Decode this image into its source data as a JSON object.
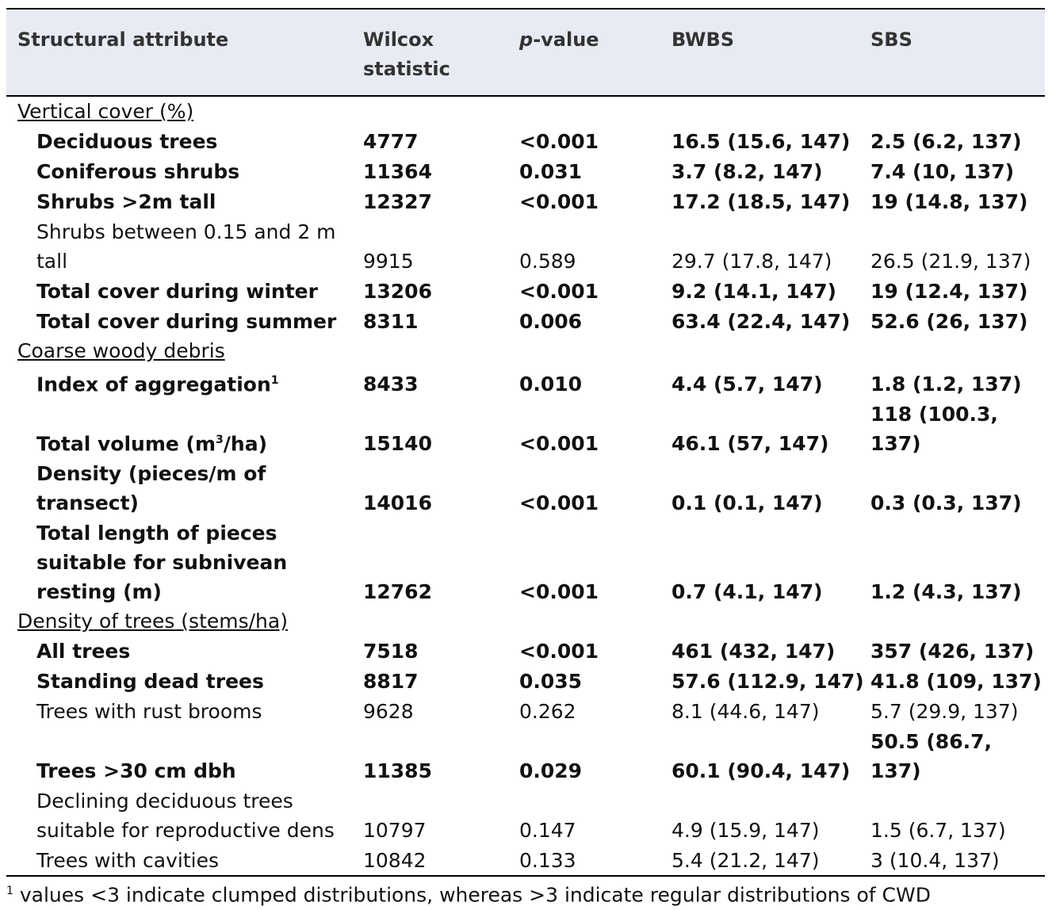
{
  "header": {
    "col1": "Structural attribute",
    "col2_line1": "Wilcox",
    "col2_line2": "statistic",
    "col3_italic": "p",
    "col3_rest": "-value",
    "col4": "BWBS",
    "col5": "SBS"
  },
  "groups": [
    {
      "title": "Vertical cover (%)",
      "rows": [
        {
          "bold": true,
          "attr": "Deciduous trees",
          "w": "4777",
          "p": "<0.001",
          "bwbs": "16.5 (15.6, 147)",
          "sbs": "2.5 (6.2, 137)"
        },
        {
          "bold": true,
          "attr": "Coniferous shrubs",
          "w": "11364",
          "p": "0.031",
          "bwbs": "3.7 (8.2, 147)",
          "sbs": "7.4 (10, 137)"
        },
        {
          "bold": true,
          "attr": "Shrubs >2m tall",
          "w": "12327",
          "p": "<0.001",
          "bwbs": "17.2 (18.5, 147)",
          "sbs": "19 (14.8, 137)"
        },
        {
          "bold": false,
          "attr": "Shrubs between 0.15 and 2 m tall",
          "w": "9915",
          "p": "0.589",
          "bwbs": "29.7 (17.8, 147)",
          "sbs": "26.5 (21.9, 137)"
        },
        {
          "bold": true,
          "attr": "Total cover during winter",
          "w": "13206",
          "p": "<0.001",
          "bwbs": "9.2 (14.1, 147)",
          "sbs": "19 (12.4, 137)"
        },
        {
          "bold": true,
          "attr": "Total cover during summer",
          "w": "8311",
          "p": "0.006",
          "bwbs": "63.4 (22.4, 147)",
          "sbs": "52.6 (26, 137)"
        }
      ]
    },
    {
      "title": "Coarse woody debris",
      "rows": [
        {
          "bold": true,
          "attr": "Index of aggregation",
          "sup": "1",
          "w": "8433",
          "p": "0.010",
          "bwbs": "4.4 (5.7, 147)",
          "sbs": "1.8 (1.2, 137)"
        },
        {
          "bold": true,
          "attr": "Total volume (m",
          "sup": "3",
          "attr_after": "/ha)",
          "w": "15140",
          "p": "<0.001",
          "bwbs": "46.1 (57, 147)",
          "sbs": "118 (100.3, 137)"
        },
        {
          "bold": true,
          "attr": "Density (pieces/m of transect)",
          "w": "14016",
          "p": "<0.001",
          "bwbs": "0.1 (0.1, 147)",
          "sbs": "0.3 (0.3, 137)"
        },
        {
          "bold": true,
          "attr": "Total length of pieces suitable for subnivean resting (m)",
          "w": "12762",
          "p": "<0.001",
          "bwbs": "0.7 (4.1, 147)",
          "sbs": "1.2 (4.3, 137)"
        }
      ]
    },
    {
      "title": "Density of trees (stems/ha)",
      "rows": [
        {
          "bold": true,
          "attr": "All trees",
          "w": "7518",
          "p": "<0.001",
          "bwbs": "461 (432, 147)",
          "sbs": "357 (426, 137)"
        },
        {
          "bold": true,
          "attr": "Standing dead trees",
          "w": "8817",
          "p": "0.035",
          "bwbs": "57.6 (112.9, 147)",
          "sbs": "41.8 (109, 137)"
        },
        {
          "bold": false,
          "attr": "Trees with rust brooms",
          "w": "9628",
          "p": "0.262",
          "bwbs": "8.1 (44.6, 147)",
          "sbs": "5.7 (29.9, 137)"
        },
        {
          "bold": true,
          "attr": "Trees >30 cm dbh",
          "w": "11385",
          "p": "0.029",
          "bwbs": "60.1 (90.4, 147)",
          "sbs": "50.5 (86.7, 137)"
        },
        {
          "bold": false,
          "attr": "Declining deciduous trees suitable for reproductive dens",
          "w": "10797",
          "p": "0.147",
          "bwbs": "4.9 (15.9, 147)",
          "sbs": "1.5 (6.7, 137)"
        },
        {
          "bold": false,
          "attr": "Trees with cavities",
          "w": "10842",
          "p": "0.133",
          "bwbs": "5.4 (21.2, 147)",
          "sbs": "3 (10.4, 137)"
        }
      ]
    }
  ],
  "footnote": {
    "mark": "1",
    "text": " values <3 indicate clumped distributions, whereas >3 indicate regular distributions of CWD"
  }
}
